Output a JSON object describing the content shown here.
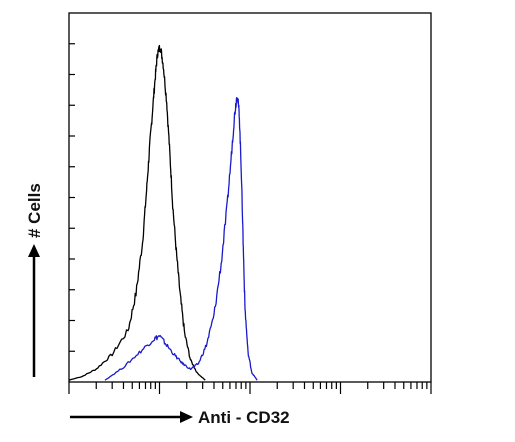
{
  "chart_data": {
    "type": "line",
    "title": "",
    "xlabel": "Anti - CD32",
    "ylabel": "# Cells",
    "x_scale": "log",
    "xlim": [
      1,
      10000
    ],
    "ylim": [
      0,
      100
    ],
    "y_minor_ticks": 11,
    "grid": false,
    "legend": "none",
    "series": [
      {
        "color": "#000000",
        "x": [
          1.0,
          1.4,
          2.0,
          3.0,
          4.5,
          5.5,
          6.5,
          7.2,
          7.8,
          8.4,
          9.0,
          9.5,
          10.2,
          11.0,
          12.0,
          13.0,
          14.0,
          15.5,
          17.0,
          19.0,
          22.0,
          26.0,
          32.0
        ],
        "y": [
          0.5,
          1.5,
          3.5,
          7.5,
          14,
          24,
          38,
          52,
          64,
          74,
          83,
          89,
          91,
          86,
          76,
          62,
          48,
          34,
          23,
          13,
          6,
          2.5,
          0.5
        ]
      },
      {
        "color": "#1a1acc",
        "x": [
          2.5,
          4.0,
          6.0,
          8.5,
          10.0,
          12.0,
          15.0,
          18.0,
          22.0,
          27.0,
          33.0,
          40.0,
          48.0,
          56.0,
          63.0,
          68.0,
          72.0,
          76.0,
          80.0,
          84.0,
          88.0,
          95.0,
          105.0,
          120.0
        ],
        "y": [
          0.5,
          4,
          8,
          11.5,
          12.5,
          10,
          7,
          5,
          3.5,
          5,
          10,
          18,
          32,
          48,
          63,
          73,
          78,
          73,
          58,
          38,
          20,
          8,
          2.5,
          0.5
        ]
      }
    ]
  }
}
